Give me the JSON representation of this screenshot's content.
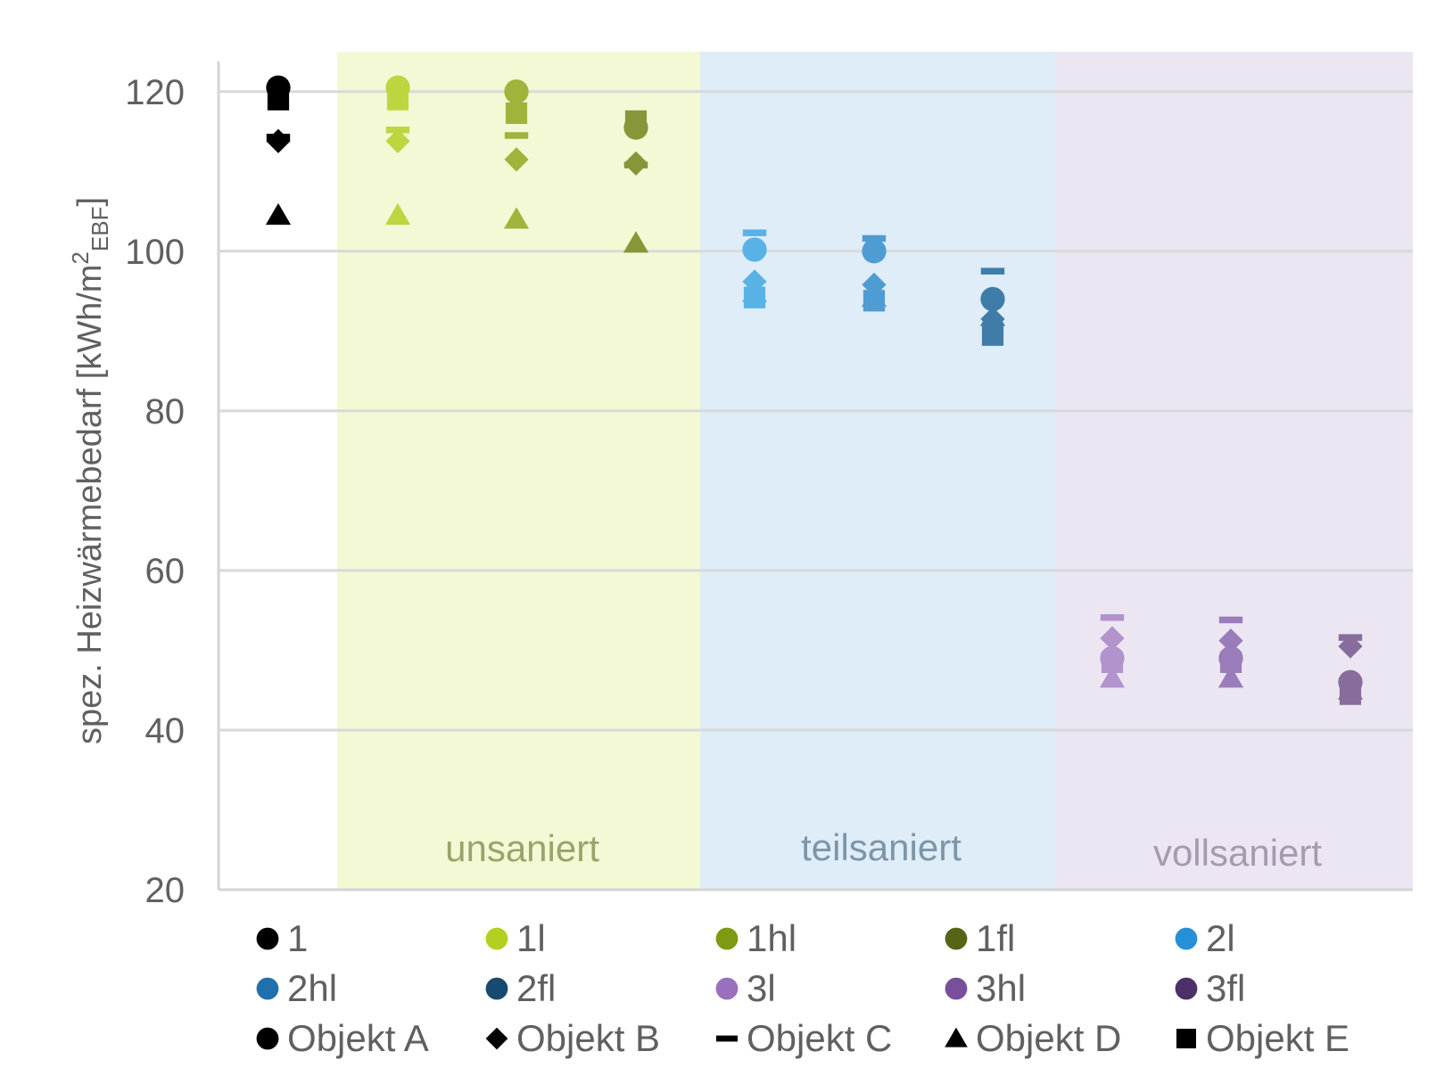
{
  "chart_data": {
    "type": "scatter",
    "title": "",
    "ylabel": "spez. Heizwärmebedarf [kWh/m",
    "ylabel_sup": "2",
    "ylabel_sub": "EBF",
    "ylabel_end": "]",
    "ylim": [
      20,
      125
    ],
    "yticks": [
      "20",
      "40",
      "60",
      "80",
      "100",
      "120"
    ],
    "grid": true,
    "legend_position": "bottom",
    "regions": [
      {
        "label": "unsaniert",
        "color": "#f4f9d5",
        "text_color": "#9aa36a"
      },
      {
        "label": "teilsaniert",
        "color": "#deedf8",
        "text_color": "#7d95a6"
      },
      {
        "label": "vollsaniert",
        "color": "#ece6f2",
        "text_color": "#a59bae"
      }
    ],
    "variants": [
      {
        "name": "1",
        "color": "#000000",
        "values": {
          "Objekt A": 120.5,
          "Objekt B": 113.8,
          "Objekt C": 114.3,
          "Objekt D": 104.5,
          "Objekt E": 119.0
        }
      },
      {
        "name": "1l",
        "color": "#bdd63f",
        "values": {
          "Objekt A": 120.5,
          "Objekt B": 113.8,
          "Objekt C": 115.2,
          "Objekt D": 104.5,
          "Objekt E": 119.0
        }
      },
      {
        "name": "1hl",
        "color": "#a0b33a",
        "values": {
          "Objekt A": 120.0,
          "Objekt B": 111.5,
          "Objekt C": 114.5,
          "Objekt D": 104.0,
          "Objekt E": 117.3
        }
      },
      {
        "name": "1fl",
        "color": "#869638",
        "values": {
          "Objekt A": 115.5,
          "Objekt B": 111.0,
          "Objekt C": 110.8,
          "Objekt D": 101.0,
          "Objekt E": 116.3
        }
      },
      {
        "name": "2l",
        "color": "#58b2e6",
        "values": {
          "Objekt A": 100.2,
          "Objekt B": 96.2,
          "Objekt C": 102.3,
          "Objekt D": 94.8,
          "Objekt E": 94.2
        }
      },
      {
        "name": "2hl",
        "color": "#4f9cd2",
        "values": {
          "Objekt A": 100.0,
          "Objekt B": 95.8,
          "Objekt C": 101.6,
          "Objekt D": 94.2,
          "Objekt E": 93.8
        }
      },
      {
        "name": "2fl",
        "color": "#3f7da8",
        "values": {
          "Objekt A": 94.0,
          "Objekt B": 91.5,
          "Objekt C": 97.5,
          "Objekt D": 91.8,
          "Objekt E": 89.5
        }
      },
      {
        "name": "3l",
        "color": "#b293cc",
        "values": {
          "Objekt A": 49.0,
          "Objekt B": 51.5,
          "Objekt C": 54.1,
          "Objekt D": 46.5,
          "Objekt E": 48.5
        }
      },
      {
        "name": "3hl",
        "color": "#9a7cba",
        "values": {
          "Objekt A": 49.0,
          "Objekt B": 51.2,
          "Objekt C": 53.8,
          "Objekt D": 46.5,
          "Objekt E": 48.5
        }
      },
      {
        "name": "3fl",
        "color": "#866d9c",
        "values": {
          "Objekt A": 46.0,
          "Objekt B": 50.5,
          "Objekt C": 51.6,
          "Objekt D": 45.0,
          "Objekt E": 44.5
        }
      }
    ],
    "markers": [
      {
        "name": "Objekt A",
        "shape": "circle"
      },
      {
        "name": "Objekt B",
        "shape": "diamond"
      },
      {
        "name": "Objekt C",
        "shape": "dash"
      },
      {
        "name": "Objekt D",
        "shape": "triangle"
      },
      {
        "name": "Objekt E",
        "shape": "square"
      }
    ],
    "legend": [
      {
        "label": "1",
        "color": "#000000",
        "shape": "circle"
      },
      {
        "label": "1l",
        "color": "#b3cf20",
        "shape": "circle"
      },
      {
        "label": "1hl",
        "color": "#7d9a12",
        "shape": "circle"
      },
      {
        "label": "1fl",
        "color": "#566416",
        "shape": "circle"
      },
      {
        "label": "2l",
        "color": "#2690d6",
        "shape": "circle"
      },
      {
        "label": "2hl",
        "color": "#1f70ad",
        "shape": "circle"
      },
      {
        "label": "2fl",
        "color": "#174a70",
        "shape": "circle"
      },
      {
        "label": "3l",
        "color": "#9870bd",
        "shape": "circle"
      },
      {
        "label": "3hl",
        "color": "#784f9c",
        "shape": "circle"
      },
      {
        "label": "3fl",
        "color": "#4d3068",
        "shape": "circle"
      },
      {
        "label": "Objekt A",
        "color": "#000000",
        "shape": "circle"
      },
      {
        "label": "Objekt B",
        "color": "#000000",
        "shape": "diamond"
      },
      {
        "label": "Objekt C",
        "color": "#000000",
        "shape": "dash"
      },
      {
        "label": "Objekt D",
        "color": "#000000",
        "shape": "triangle"
      },
      {
        "label": "Objekt E",
        "color": "#000000",
        "shape": "square"
      }
    ]
  }
}
